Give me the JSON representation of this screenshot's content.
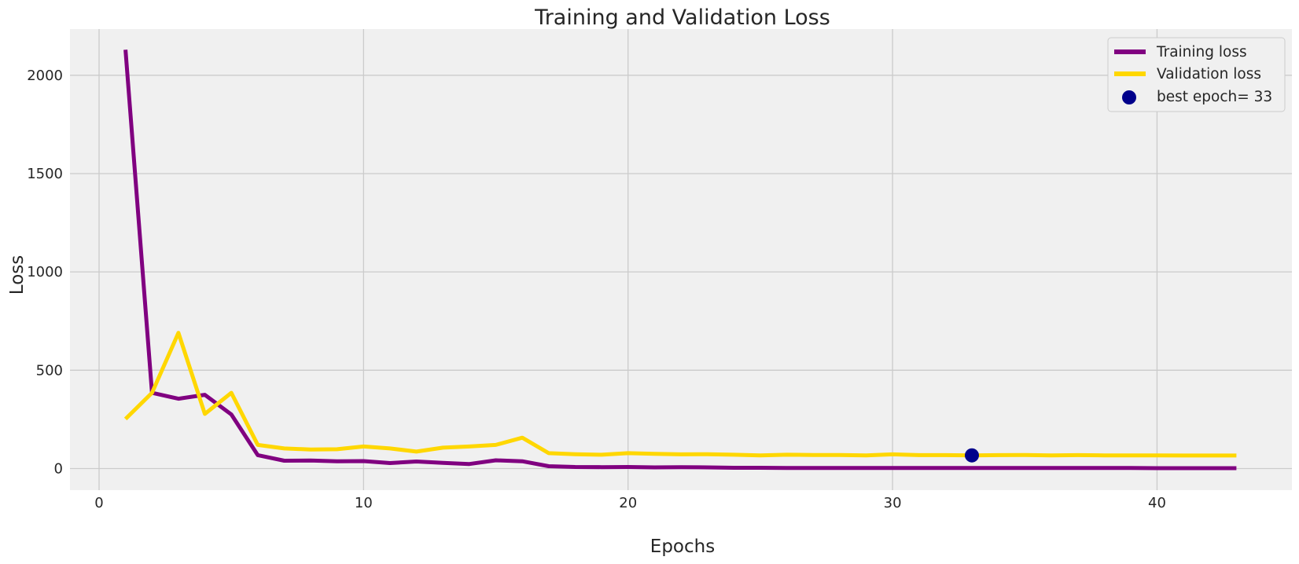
{
  "chart_data": {
    "type": "line",
    "title": "Training and Validation Loss",
    "xlabel": "Epochs",
    "ylabel": "Loss",
    "xlim": [
      -1.1,
      45.1
    ],
    "ylim": [
      -110,
      2235
    ],
    "xticks": [
      0,
      10,
      20,
      30,
      40
    ],
    "yticks": [
      0,
      500,
      1000,
      1500,
      2000
    ],
    "grid": true,
    "legend_position": "top-right",
    "x": [
      1,
      2,
      3,
      4,
      5,
      6,
      7,
      8,
      9,
      10,
      11,
      12,
      13,
      14,
      15,
      16,
      17,
      18,
      19,
      20,
      21,
      22,
      23,
      24,
      25,
      26,
      27,
      28,
      29,
      30,
      31,
      32,
      33,
      34,
      35,
      36,
      37,
      38,
      39,
      40,
      41,
      42,
      43
    ],
    "series": [
      {
        "name": "Training loss",
        "color": "#800080",
        "values": [
          2130,
          385,
          355,
          375,
          275,
          68,
          40,
          41,
          37,
          38,
          28,
          36,
          29,
          23,
          42,
          37,
          12,
          8,
          7,
          8,
          6,
          7,
          6,
          4,
          4,
          3,
          3,
          3,
          3,
          3,
          3,
          3,
          3,
          3,
          3,
          3,
          3,
          3,
          3,
          2,
          2,
          2,
          2
        ]
      },
      {
        "name": "Validation loss",
        "color": "#ffd700",
        "values": [
          252,
          385,
          690,
          278,
          385,
          120,
          102,
          97,
          98,
          112,
          102,
          86,
          106,
          112,
          120,
          157,
          78,
          73,
          70,
          78,
          75,
          72,
          73,
          70,
          67,
          70,
          69,
          69,
          67,
          72,
          68,
          68,
          67,
          68,
          69,
          67,
          68,
          67,
          67,
          67,
          66,
          66,
          66
        ]
      }
    ],
    "best_point": {
      "label": "best epoch= 33",
      "x": 33,
      "y": 67,
      "color": "#00008b"
    }
  }
}
